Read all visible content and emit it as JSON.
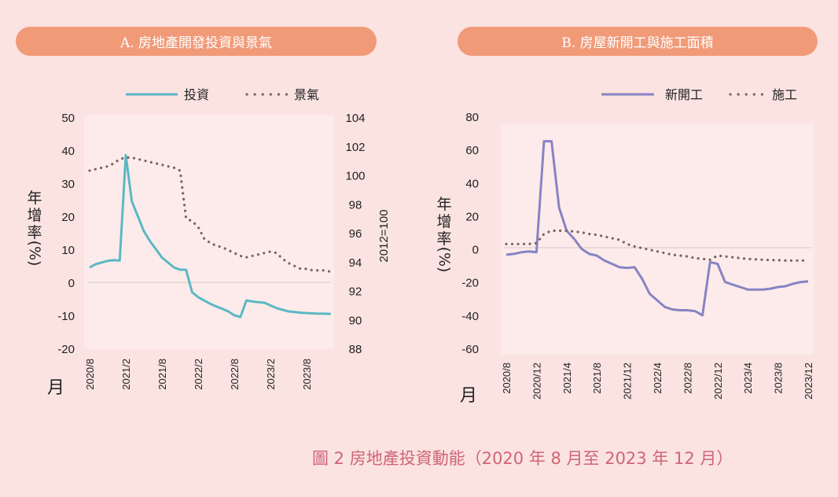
{
  "figure_caption": "圖 2  房地產投資動能（2020 年 8 月至 2023 年 12 月）",
  "colors": {
    "pill": "#f09a78",
    "investment": "#5bb8c4",
    "sentiment": "#7a6560",
    "new_start": "#8883c4",
    "construction": "#7a6560",
    "caption": "#d06476",
    "plot_bg": "#fcebea",
    "page_bg": "#fae3e1"
  },
  "chart_data": [
    {
      "type": "line",
      "title": "A. 房地產開發投資與景氣",
      "xlabel": "月",
      "ylabel": "年增率（%）",
      "y2label": "2012=100",
      "ylim": [
        -20,
        50
      ],
      "y2lim": [
        88,
        104
      ],
      "yticks": [
        "50",
        "40",
        "30",
        "20",
        "10",
        "0",
        "-10",
        "-20"
      ],
      "y2ticks": [
        "104",
        "102",
        "100",
        "98",
        "96",
        "94",
        "92",
        "90",
        "88"
      ],
      "xticks": [
        "2020/8",
        "2021/2",
        "2021/8",
        "2022/2",
        "2022/8",
        "2023/2",
        "2023/8"
      ],
      "x_start": "2020/8",
      "x_end": "2023/12",
      "legend_position": "top",
      "series": [
        {
          "name": "投資",
          "axis": "left",
          "style": "solid",
          "values": [
            4.5,
            5.5,
            6.0,
            6.5,
            6.7,
            6.6,
            38.5,
            24.5,
            20.0,
            15.5,
            12.5,
            10.0,
            7.5,
            6.0,
            4.5,
            3.8,
            3.8,
            -3.0,
            -4.5,
            -5.5,
            -6.5,
            -7.3,
            -8.0,
            -8.8,
            -10.0,
            -10.5,
            -5.5,
            -5.8,
            -6.0,
            -6.2,
            -7.0,
            -7.8,
            -8.3,
            -8.8,
            -9.0,
            -9.2,
            -9.3,
            -9.4,
            -9.5,
            -9.5,
            -9.6
          ]
        },
        {
          "name": "景氣",
          "axis": "right",
          "style": "dotted",
          "values": [
            100.3,
            100.4,
            100.5,
            100.6,
            100.8,
            101.1,
            101.2,
            101.2,
            101.1,
            101.0,
            100.9,
            100.8,
            100.7,
            100.6,
            100.5,
            100.3,
            97.0,
            96.8,
            96.4,
            95.6,
            95.3,
            95.1,
            95.0,
            94.8,
            94.6,
            94.4,
            94.3,
            94.4,
            94.5,
            94.6,
            94.7,
            94.6,
            94.2,
            93.9,
            93.7,
            93.5,
            93.5,
            93.4,
            93.4,
            93.4,
            93.3
          ]
        }
      ]
    },
    {
      "type": "line",
      "title": "B. 房屋新開工與施工面積",
      "xlabel": "月",
      "ylabel": "年增率（%）",
      "ylim": [
        -60,
        80
      ],
      "yticks": [
        "80",
        "60",
        "40",
        "20",
        "0",
        "-20",
        "-40",
        "-60"
      ],
      "xticks": [
        "2020/8",
        "2020/12",
        "2021/4",
        "2021/8",
        "2021/12",
        "2022/4",
        "2022/8",
        "2022/12",
        "2023/4",
        "2023/8",
        "2023/12"
      ],
      "x_start": "2020/8",
      "x_end": "2023/12",
      "legend_position": "top-right",
      "series": [
        {
          "name": "新開工",
          "style": "solid",
          "values": [
            -3.5,
            -3.0,
            -2.0,
            -1.5,
            -2.0,
            65.0,
            65.0,
            25.0,
            11.0,
            6.0,
            0.0,
            -3.0,
            -4.0,
            -7.0,
            -9.0,
            -11.0,
            -11.5,
            -11.0,
            -18.0,
            -27.0,
            -31.0,
            -35.0,
            -36.5,
            -37.0,
            -37.0,
            -37.5,
            -40.0,
            -8.0,
            -9.0,
            -20.0,
            -21.5,
            -23.0,
            -24.5,
            -24.5,
            -24.5,
            -24.0,
            -23.0,
            -22.5,
            -21.0,
            -20.0,
            -19.5
          ]
        },
        {
          "name": "施工",
          "style": "dotted",
          "values": [
            3.0,
            3.0,
            3.0,
            3.0,
            3.5,
            9.0,
            11.0,
            11.0,
            11.0,
            10.5,
            10.0,
            9.0,
            8.5,
            7.5,
            6.5,
            5.5,
            3.0,
            1.5,
            0.5,
            -0.5,
            -1.5,
            -2.5,
            -3.5,
            -4.0,
            -4.5,
            -5.5,
            -6.0,
            -6.5,
            -4.0,
            -4.5,
            -5.0,
            -5.5,
            -6.0,
            -6.3,
            -6.5,
            -6.7,
            -6.8,
            -7.0,
            -7.0,
            -7.0,
            -7.0
          ]
        }
      ]
    }
  ]
}
